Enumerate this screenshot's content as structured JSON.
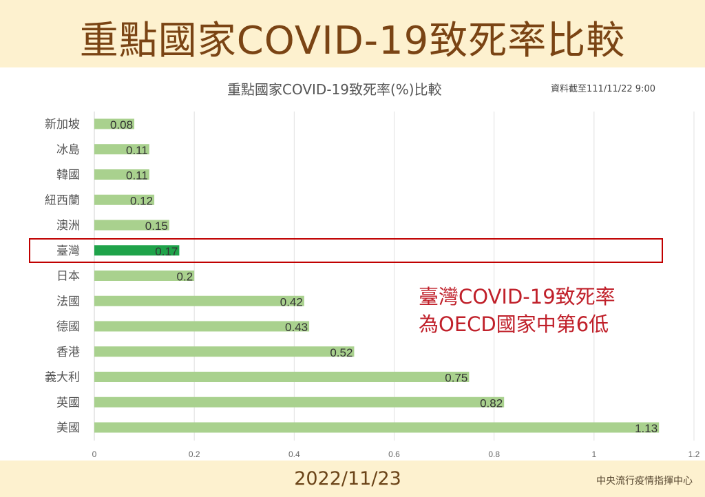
{
  "header": {
    "title": "重點國家COVID-19致死率比較"
  },
  "footer": {
    "date": "2022/11/23",
    "org": "中央流行疫情指揮中心"
  },
  "annotation": {
    "line1": "臺灣COVID-19致死率",
    "line2": "為OECD國家中第6低"
  },
  "colors": {
    "bar": "#a9d18e",
    "highlight_bar": "#1fa34a",
    "highlight_box": "#c00000",
    "header_bg": "#fdf1cf",
    "title": "#7a4414"
  },
  "chart_data": {
    "type": "bar",
    "orientation": "horizontal",
    "title": "重點國家COVID-19致死率(%)比較",
    "subtitle": "資料截至111/11/22 9:00",
    "categories": [
      "新加坡",
      "冰島",
      "韓國",
      "紐西蘭",
      "澳洲",
      "臺灣",
      "日本",
      "法國",
      "德國",
      "香港",
      "義大利",
      "英國",
      "美國"
    ],
    "values": [
      0.08,
      0.11,
      0.11,
      0.12,
      0.15,
      0.17,
      0.2,
      0.42,
      0.43,
      0.52,
      0.75,
      0.82,
      1.13
    ],
    "value_labels": [
      "0.08",
      "0.11",
      "0.11",
      "0.12",
      "0.15",
      "0.17",
      "0.2",
      "0.42",
      "0.43",
      "0.52",
      "0.75",
      "0.82",
      "1.13"
    ],
    "highlight": "臺灣",
    "xlim": [
      0,
      1.2
    ],
    "xticks": [
      "0",
      "0.2",
      "0.4",
      "0.6",
      "0.8",
      "1",
      "1.2"
    ],
    "grid": "vertical"
  }
}
